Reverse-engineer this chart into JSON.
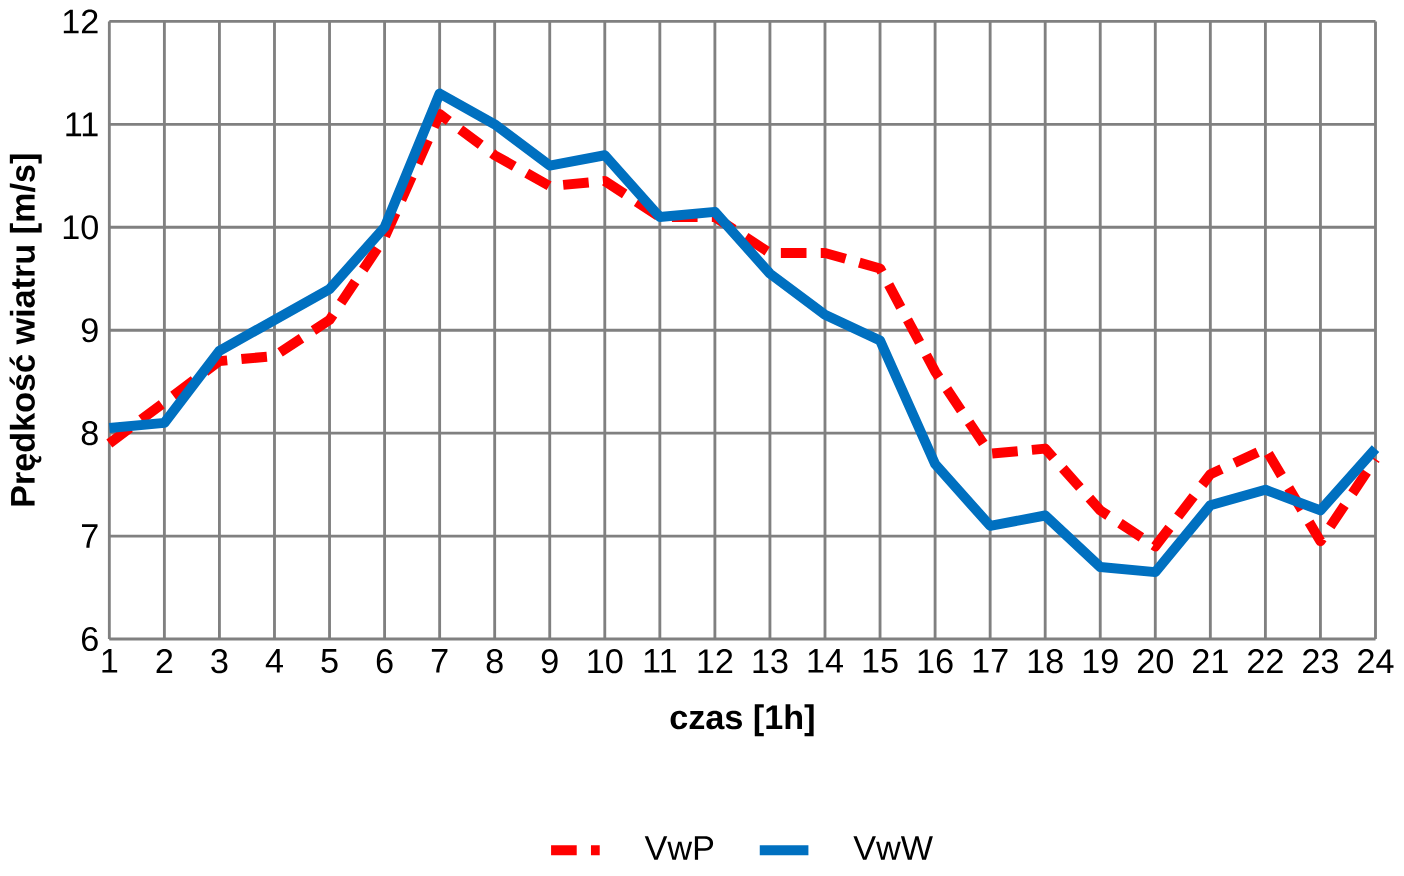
{
  "chart_data": {
    "type": "line",
    "xlabel": "czas [1h]",
    "ylabel": "Prędkość wiatru [m/s]",
    "x": [
      1,
      2,
      3,
      4,
      5,
      6,
      7,
      8,
      9,
      10,
      11,
      12,
      13,
      14,
      15,
      16,
      17,
      18,
      19,
      20,
      21,
      22,
      23,
      24
    ],
    "xlim": [
      1,
      24
    ],
    "xticks": [
      1,
      2,
      3,
      4,
      5,
      6,
      7,
      8,
      9,
      10,
      11,
      12,
      13,
      14,
      15,
      16,
      17,
      18,
      19,
      20,
      21,
      22,
      23,
      24
    ],
    "ylim": [
      6,
      12
    ],
    "yticks": [
      6,
      7,
      8,
      9,
      10,
      11,
      12
    ],
    "grid": true,
    "legend": "bottom",
    "marker": "none",
    "series": [
      {
        "name": "VwP",
        "color": "#ff0000",
        "line_style": "dashed",
        "values": [
          7.9,
          8.3,
          8.7,
          8.75,
          9.1,
          9.9,
          11.1,
          10.7,
          10.4,
          10.45,
          10.1,
          10.1,
          9.75,
          9.75,
          9.6,
          8.6,
          7.8,
          7.85,
          7.25,
          6.9,
          7.6,
          7.85,
          6.95,
          7.75
        ]
      },
      {
        "name": "VwW",
        "color": "#0070c0",
        "line_style": "solid",
        "values": [
          8.05,
          8.1,
          8.8,
          9.1,
          9.4,
          10.0,
          11.3,
          11.0,
          10.6,
          10.7,
          10.1,
          10.15,
          9.55,
          9.15,
          8.9,
          7.7,
          7.1,
          7.2,
          6.7,
          6.65,
          7.3,
          7.45,
          7.25,
          7.85
        ]
      }
    ]
  }
}
